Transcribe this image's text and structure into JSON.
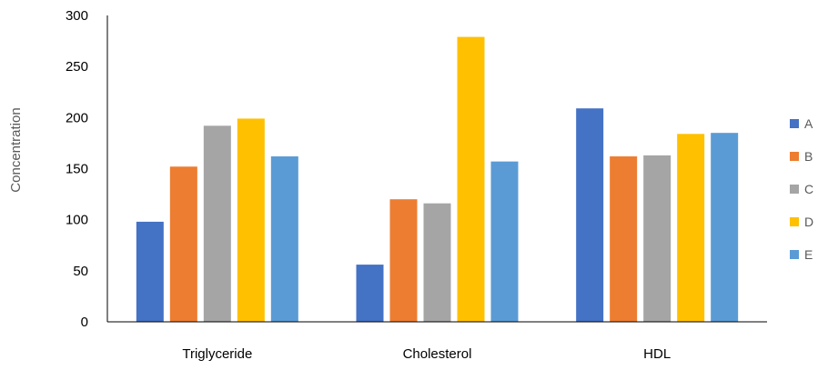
{
  "chart_data": {
    "type": "bar",
    "title": "",
    "xlabel": "",
    "ylabel": "Concentration",
    "categories": [
      "Triglyceride",
      "Cholesterol",
      "HDL"
    ],
    "ylim": [
      0,
      300
    ],
    "yticks": [
      0,
      50,
      100,
      150,
      200,
      250,
      300
    ],
    "grid": false,
    "legend_position": "right",
    "series": [
      {
        "name": "A",
        "color": "#4472C4",
        "values": [
          98,
          56,
          209
        ]
      },
      {
        "name": "B",
        "color": "#ED7D31",
        "values": [
          152,
          120,
          162
        ]
      },
      {
        "name": "C",
        "color": "#A5A5A5",
        "values": [
          192,
          116,
          163
        ]
      },
      {
        "name": "D",
        "color": "#FFC000",
        "values": [
          199,
          279,
          184
        ]
      },
      {
        "name": "E",
        "color": "#5B9BD5",
        "values": [
          162,
          157,
          185
        ]
      }
    ]
  }
}
